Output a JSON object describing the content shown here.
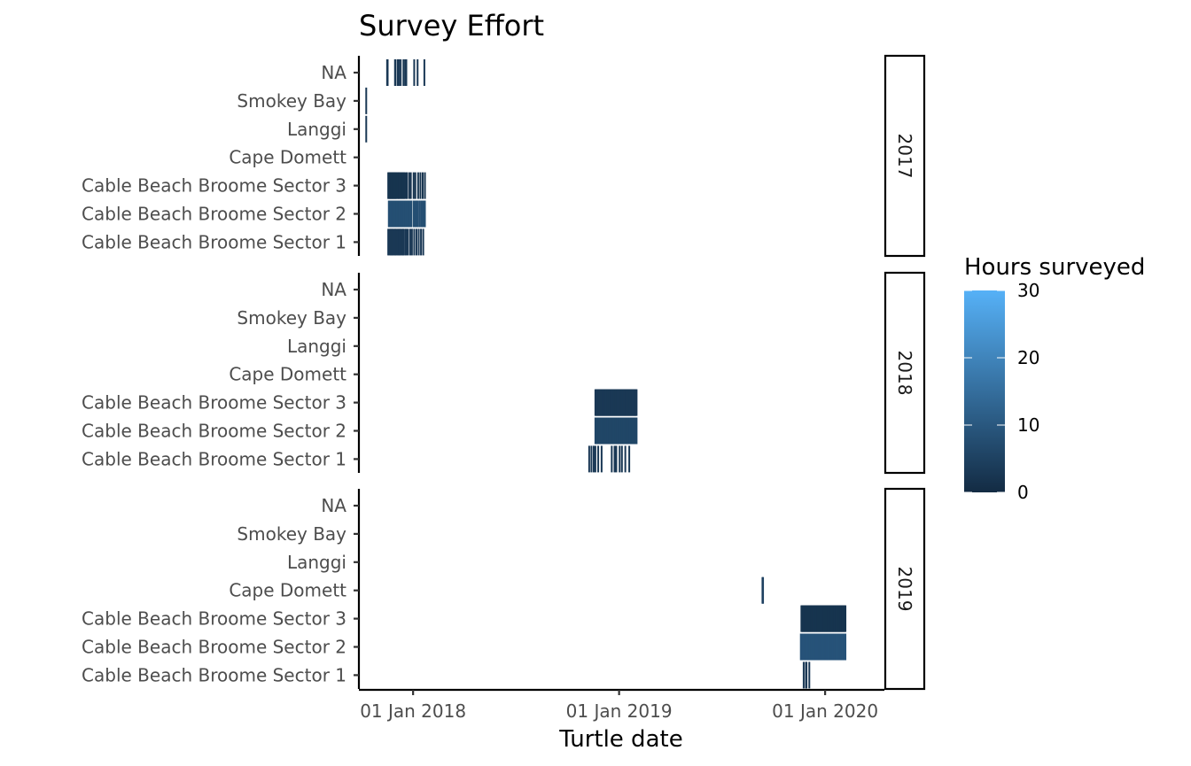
{
  "chart_data": {
    "type": "heatmap",
    "title": "Survey Effort",
    "xlabel": "Turtle date",
    "ylabel": "",
    "x_ticks": [
      "01 Jan 2018",
      "01 Jan 2019",
      "01 Jan 2020"
    ],
    "x_tick_dates": [
      "2018-01-01",
      "2019-01-01",
      "2020-01-01"
    ],
    "xlim": [
      "2017-09-27",
      "2020-04-15"
    ],
    "y_categories": [
      "Cable Beach Broome Sector 1",
      "Cable Beach Broome Sector 2",
      "Cable Beach Broome Sector 3",
      "Cape Domett",
      "Langgi",
      "Smokey Bay",
      "NA"
    ],
    "facets": [
      "2017",
      "2018",
      "2019"
    ],
    "legend": {
      "title": "Hours surveyed",
      "position": "right",
      "range": [
        0,
        30
      ],
      "ticks": [
        0,
        10,
        20,
        30
      ],
      "color_low": "#132B43",
      "color_high": "#56B1F7"
    },
    "grid": false,
    "tiles": [
      {
        "facet": "2017",
        "y": "NA",
        "x": [
          "2017-11-16",
          "2017-11-17",
          "2017-11-30",
          "2017-12-01",
          "2017-12-05",
          "2017-12-06",
          "2017-12-07",
          "2017-12-10",
          "2017-12-15",
          "2017-12-18",
          "2017-12-20",
          "2018-01-03",
          "2018-01-09",
          "2018-01-21"
        ],
        "value": 3
      },
      {
        "facet": "2017",
        "y": "Smokey Bay",
        "x": [
          "2017-10-10"
        ],
        "value": 3
      },
      {
        "facet": "2017",
        "y": "Langgi",
        "x": [
          "2017-10-10"
        ],
        "value": 3
      },
      {
        "facet": "2017",
        "y": "Cable Beach Broome Sector 3",
        "x": [
          "2017-11-18",
          "2017-11-19",
          "2017-11-20",
          "2017-11-21",
          "2017-11-22",
          "2017-11-23",
          "2017-11-24",
          "2017-11-25",
          "2017-11-26",
          "2017-11-27",
          "2017-11-28",
          "2017-11-29",
          "2017-11-30",
          "2017-12-01",
          "2017-12-02",
          "2017-12-03",
          "2017-12-05",
          "2017-12-06",
          "2017-12-07",
          "2017-12-08",
          "2017-12-10",
          "2017-12-11",
          "2017-12-13",
          "2017-12-14",
          "2017-12-16",
          "2017-12-17",
          "2017-12-20",
          "2017-12-21",
          "2017-12-25",
          "2017-12-28",
          "2018-01-02",
          "2018-01-05",
          "2018-01-10",
          "2018-01-14",
          "2018-01-18",
          "2018-01-22"
        ],
        "value": 2
      },
      {
        "facet": "2017",
        "y": "Cable Beach Broome Sector 2",
        "x": [
          "2017-11-19",
          "2017-11-21",
          "2017-11-22",
          "2017-11-23",
          "2017-11-25",
          "2017-11-26",
          "2017-11-27",
          "2017-11-28",
          "2017-11-30",
          "2017-12-01",
          "2017-12-02",
          "2017-12-03",
          "2017-12-04",
          "2017-12-06",
          "2017-12-07",
          "2017-12-08",
          "2017-12-10",
          "2017-12-11",
          "2017-12-12",
          "2017-12-14",
          "2017-12-15",
          "2017-12-16",
          "2017-12-18",
          "2017-12-19",
          "2017-12-21",
          "2017-12-22",
          "2017-12-24",
          "2017-12-27",
          "2017-12-29",
          "2018-01-02",
          "2018-01-04",
          "2018-01-07",
          "2018-01-09",
          "2018-01-12",
          "2018-01-15",
          "2018-01-18",
          "2018-01-20",
          "2018-01-22"
        ],
        "value": 8
      },
      {
        "facet": "2017",
        "y": "Cable Beach Broome Sector 1",
        "x": [
          "2017-11-18",
          "2017-11-20",
          "2017-11-22",
          "2017-11-23",
          "2017-11-25",
          "2017-11-26",
          "2017-11-28",
          "2017-11-30",
          "2017-12-01",
          "2017-12-03",
          "2017-12-05",
          "2017-12-07",
          "2017-12-08",
          "2017-12-10",
          "2017-12-12",
          "2017-12-14",
          "2017-12-15",
          "2017-12-18",
          "2017-12-20",
          "2017-12-23",
          "2017-12-27",
          "2017-12-30",
          "2018-01-03",
          "2018-01-07",
          "2018-01-11",
          "2018-01-15",
          "2018-01-19"
        ],
        "value": 3
      },
      {
        "facet": "2018",
        "y": "Cable Beach Broome Sector 3",
        "x": [
          "2018-11-20",
          "2018-11-21",
          "2018-11-22",
          "2018-11-23",
          "2018-11-24",
          "2018-11-25",
          "2018-11-26",
          "2018-11-27",
          "2018-11-28",
          "2018-11-29",
          "2018-11-30",
          "2018-12-01",
          "2018-12-02",
          "2018-12-03",
          "2018-12-04",
          "2018-12-05",
          "2018-12-06",
          "2018-12-07",
          "2018-12-08",
          "2018-12-09",
          "2018-12-10",
          "2018-12-11",
          "2018-12-12",
          "2018-12-13",
          "2018-12-14",
          "2018-12-15",
          "2018-12-16",
          "2018-12-17",
          "2018-12-18",
          "2018-12-19",
          "2018-12-20",
          "2018-12-21",
          "2018-12-22",
          "2018-12-23",
          "2018-12-24",
          "2018-12-25",
          "2018-12-26",
          "2018-12-27",
          "2018-12-28",
          "2018-12-29",
          "2018-12-30",
          "2018-12-31",
          "2019-01-01",
          "2019-01-02",
          "2019-01-03",
          "2019-01-04",
          "2019-01-05",
          "2019-01-06",
          "2019-01-07",
          "2019-01-08",
          "2019-01-09",
          "2019-01-10",
          "2019-01-11",
          "2019-01-12",
          "2019-01-13",
          "2019-01-14",
          "2019-01-15",
          "2019-01-16",
          "2019-01-17",
          "2019-01-18",
          "2019-01-19",
          "2019-01-20",
          "2019-01-21",
          "2019-01-22",
          "2019-01-23",
          "2019-01-24",
          "2019-01-25",
          "2019-01-26",
          "2019-01-27",
          "2019-01-28",
          "2019-01-29",
          "2019-01-30",
          "2019-01-31",
          "2019-02-01"
        ],
        "value": 3
      },
      {
        "facet": "2018",
        "y": "Cable Beach Broome Sector 2",
        "x": [
          "2018-11-20",
          "2018-11-21",
          "2018-11-22",
          "2018-11-23",
          "2018-11-24",
          "2018-11-25",
          "2018-11-26",
          "2018-11-27",
          "2018-11-28",
          "2018-11-29",
          "2018-11-30",
          "2018-12-01",
          "2018-12-02",
          "2018-12-03",
          "2018-12-04",
          "2018-12-05",
          "2018-12-06",
          "2018-12-07",
          "2018-12-08",
          "2018-12-09",
          "2018-12-10",
          "2018-12-11",
          "2018-12-12",
          "2018-12-13",
          "2018-12-14",
          "2018-12-15",
          "2018-12-16",
          "2018-12-17",
          "2018-12-18",
          "2018-12-19",
          "2018-12-20",
          "2018-12-21",
          "2018-12-22",
          "2018-12-23",
          "2018-12-24",
          "2018-12-25",
          "2018-12-26",
          "2018-12-27",
          "2018-12-28",
          "2018-12-29",
          "2018-12-30",
          "2018-12-31",
          "2019-01-01",
          "2019-01-02",
          "2019-01-03",
          "2019-01-04",
          "2019-01-05",
          "2019-01-06",
          "2019-01-07",
          "2019-01-08",
          "2019-01-09",
          "2019-01-10",
          "2019-01-11",
          "2019-01-12",
          "2019-01-13",
          "2019-01-14",
          "2019-01-15",
          "2019-01-16",
          "2019-01-17",
          "2019-01-18",
          "2019-01-19",
          "2019-01-20",
          "2019-01-21",
          "2019-01-22",
          "2019-01-23",
          "2019-01-24",
          "2019-01-25",
          "2019-01-26",
          "2019-01-27",
          "2019-01-28",
          "2019-01-29",
          "2019-01-30",
          "2019-01-31",
          "2019-02-01"
        ],
        "value": 6
      },
      {
        "facet": "2018",
        "y": "Cable Beach Broome Sector 1",
        "x": [
          "2018-11-09",
          "2018-11-13",
          "2018-11-17",
          "2018-11-20",
          "2018-11-25",
          "2018-12-01",
          "2018-12-19",
          "2018-12-24",
          "2018-12-27",
          "2019-01-02",
          "2019-01-06",
          "2019-01-12",
          "2019-01-19"
        ],
        "value": 3
      },
      {
        "facet": "2019",
        "y": "Cape Domett",
        "x": [
          "2019-09-12",
          "2019-09-13"
        ],
        "value": 5
      },
      {
        "facet": "2019",
        "y": "Cable Beach Broome Sector 3",
        "x": [
          "2019-11-20",
          "2019-11-21",
          "2019-11-22",
          "2019-11-23",
          "2019-11-24",
          "2019-11-25",
          "2019-11-26",
          "2019-11-27",
          "2019-11-28",
          "2019-11-29",
          "2019-11-30",
          "2019-12-01",
          "2019-12-02",
          "2019-12-03",
          "2019-12-04",
          "2019-12-05",
          "2019-12-06",
          "2019-12-07",
          "2019-12-08",
          "2019-12-09",
          "2019-12-10",
          "2019-12-11",
          "2019-12-12",
          "2019-12-13",
          "2019-12-14",
          "2019-12-15",
          "2019-12-16",
          "2019-12-17",
          "2019-12-18",
          "2019-12-19",
          "2019-12-20",
          "2019-12-21",
          "2019-12-22",
          "2019-12-23",
          "2019-12-24",
          "2019-12-25",
          "2019-12-26",
          "2019-12-27",
          "2019-12-28",
          "2019-12-29",
          "2019-12-30",
          "2019-12-31",
          "2020-01-01",
          "2020-01-02",
          "2020-01-03",
          "2020-01-04",
          "2020-01-05",
          "2020-01-06",
          "2020-01-07",
          "2020-01-08",
          "2020-01-09",
          "2020-01-10",
          "2020-01-11",
          "2020-01-12",
          "2020-01-13",
          "2020-01-14",
          "2020-01-15",
          "2020-01-16",
          "2020-01-17",
          "2020-01-18",
          "2020-01-19",
          "2020-01-20",
          "2020-01-21",
          "2020-01-22",
          "2020-01-23",
          "2020-01-24",
          "2020-01-25",
          "2020-01-26",
          "2020-01-27",
          "2020-01-28",
          "2020-01-29",
          "2020-01-30",
          "2020-01-31",
          "2020-02-01",
          "2020-02-02",
          "2020-02-03",
          "2020-02-04",
          "2020-02-05",
          "2020-02-06"
        ],
        "value": 2
      },
      {
        "facet": "2019",
        "y": "Cable Beach Broome Sector 2",
        "x": [
          "2019-11-19",
          "2019-11-21",
          "2019-11-22",
          "2019-11-23",
          "2019-11-24",
          "2019-11-25",
          "2019-11-26",
          "2019-11-27",
          "2019-11-28",
          "2019-11-29",
          "2019-11-30",
          "2019-12-01",
          "2019-12-02",
          "2019-12-03",
          "2019-12-04",
          "2019-12-05",
          "2019-12-06",
          "2019-12-07",
          "2019-12-08",
          "2019-12-09",
          "2019-12-10",
          "2019-12-11",
          "2019-12-12",
          "2019-12-13",
          "2019-12-14",
          "2019-12-15",
          "2019-12-16",
          "2019-12-17",
          "2019-12-18",
          "2019-12-19",
          "2019-12-20",
          "2019-12-21",
          "2019-12-22",
          "2019-12-23",
          "2019-12-24",
          "2019-12-25",
          "2019-12-26",
          "2019-12-27",
          "2019-12-28",
          "2019-12-29",
          "2019-12-30",
          "2019-12-31",
          "2020-01-01",
          "2020-01-02",
          "2020-01-03",
          "2020-01-04",
          "2020-01-05",
          "2020-01-06",
          "2020-01-07",
          "2020-01-08",
          "2020-01-09",
          "2020-01-10",
          "2020-01-11",
          "2020-01-12",
          "2020-01-13",
          "2020-01-14",
          "2020-01-15",
          "2020-01-16",
          "2020-01-17",
          "2020-01-18",
          "2020-01-19",
          "2020-01-20",
          "2020-01-21",
          "2020-01-22",
          "2020-01-23",
          "2020-01-24",
          "2020-01-25",
          "2020-01-26",
          "2020-01-27",
          "2020-01-28",
          "2020-01-29",
          "2020-01-30",
          "2020-01-31",
          "2020-02-01",
          "2020-02-02",
          "2020-02-03",
          "2020-02-04",
          "2020-02-05",
          "2020-02-06"
        ],
        "value": 9
      },
      {
        "facet": "2019",
        "y": "Cable Beach Broome Sector 1",
        "x": [
          "2019-11-24",
          "2019-11-28",
          "2019-11-29",
          "2019-12-04"
        ],
        "value": 3
      }
    ]
  }
}
